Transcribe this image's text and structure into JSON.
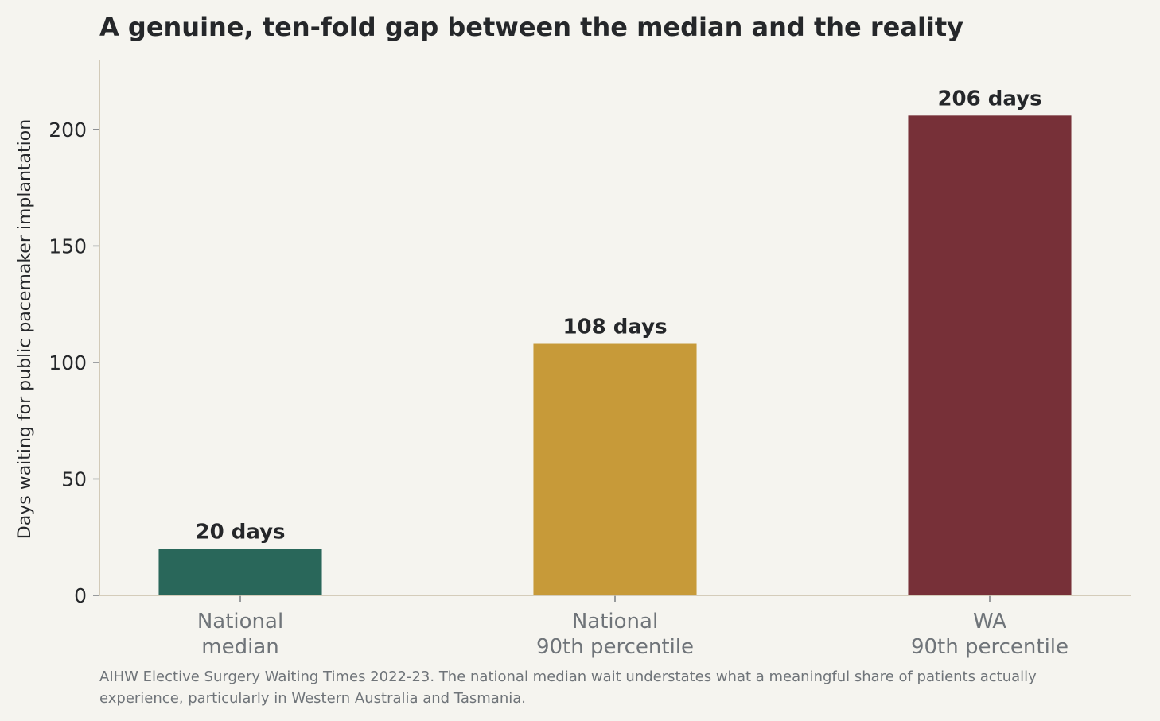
{
  "chart_data": {
    "type": "bar",
    "title": "A genuine, ten-fold gap between the median and the reality",
    "xlabel": "",
    "ylabel": "Days waiting for public pacemaker implantation",
    "categories": [
      [
        "National",
        "median"
      ],
      [
        "National",
        "90th percentile"
      ],
      [
        "WA",
        "90th percentile"
      ]
    ],
    "values": [
      20,
      108,
      206
    ],
    "data_labels": [
      "20 days",
      "108 days",
      "206 days"
    ],
    "colors": [
      "#29675a",
      "#c79a39",
      "#773038"
    ],
    "ylim": [
      0,
      230
    ],
    "yticks": [
      0,
      50,
      100,
      150,
      200
    ],
    "grid": false,
    "legend": "none",
    "footnote": [
      "AIHW Elective Surgery Waiting Times 2022-23. The national median wait understates what a meaningful share of patients actually",
      "experience, particularly in Western Australia and Tasmania."
    ]
  }
}
